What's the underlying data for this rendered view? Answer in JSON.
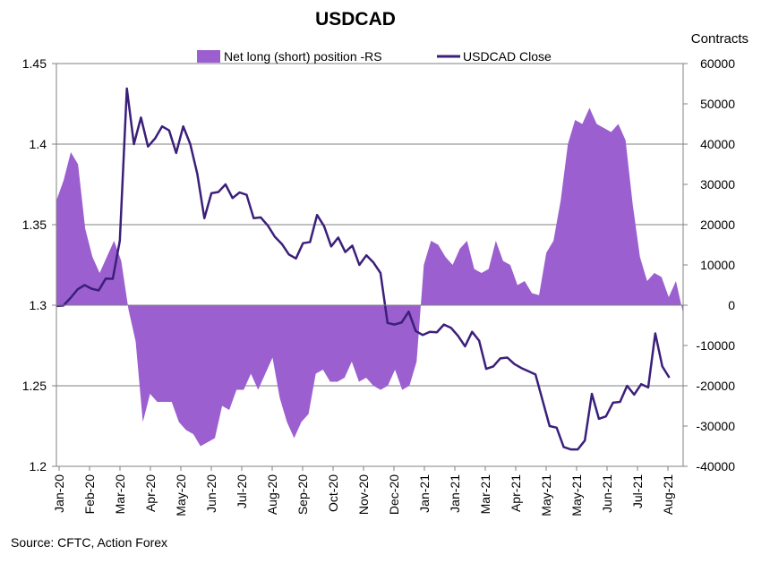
{
  "chart_data": {
    "type": "line+area",
    "title": "USDCAD",
    "right_axis_title": "Contracts",
    "source": "Source: CFTC, Action Forex",
    "legend": [
      {
        "name": "Net long (short) position -RS",
        "type": "area",
        "color": "#9b5fcf"
      },
      {
        "name": "USDCAD Close",
        "type": "line",
        "color": "#3b1f7a"
      }
    ],
    "x_ticks": [
      "Jan-20",
      "Feb-20",
      "Mar-20",
      "Apr-20",
      "May-20",
      "Jun-20",
      "Jul-20",
      "Aug-20",
      "Sep-20",
      "Oct-20",
      "Nov-20",
      "Dec-20",
      "Jan-21",
      "Jan-21",
      "Mar-21",
      "Apr-21",
      "May-21",
      "May-21",
      "Jun-21",
      "Jul-21",
      "Aug-21"
    ],
    "y_left": {
      "min": 1.2,
      "max": 1.45,
      "ticks": [
        "1.2",
        "1.25",
        "1.3",
        "1.35",
        "1.4",
        "1.45"
      ],
      "tick_values": [
        1.2,
        1.25,
        1.3,
        1.35,
        1.4,
        1.45
      ]
    },
    "y_right": {
      "min": -40000,
      "max": 60000,
      "ticks": [
        "-40000",
        "-30000",
        "-20000",
        "-10000",
        "0",
        "10000",
        "20000",
        "30000",
        "40000",
        "50000",
        "60000"
      ],
      "tick_values": [
        -40000,
        -30000,
        -20000,
        -10000,
        0,
        10000,
        20000,
        30000,
        40000,
        50000,
        60000
      ]
    },
    "weeks_span": [
      0,
      85
    ],
    "series": [
      {
        "name": "USDCAD Close",
        "axis": "left",
        "values": [
          1.2995,
          1.2998,
          1.3045,
          1.3098,
          1.3125,
          1.3102,
          1.3092,
          1.3165,
          1.3164,
          1.34,
          1.4345,
          1.4,
          1.4165,
          1.3985,
          1.4035,
          1.411,
          1.4085,
          1.3945,
          1.411,
          1.4,
          1.3815,
          1.354,
          1.3695,
          1.3703,
          1.375,
          1.3665,
          1.37,
          1.3685,
          1.354,
          1.3545,
          1.3495,
          1.3425,
          1.338,
          1.3315,
          1.329,
          1.3385,
          1.3392,
          1.356,
          1.349,
          1.3365,
          1.342,
          1.333,
          1.337,
          1.325,
          1.331,
          1.3265,
          1.32,
          1.289,
          1.288,
          1.2893,
          1.296,
          1.284,
          1.2815,
          1.2835,
          1.2832,
          1.288,
          1.286,
          1.281,
          1.2745,
          1.2835,
          1.278,
          1.2605,
          1.262,
          1.267,
          1.2675,
          1.2635,
          1.261,
          1.259,
          1.257,
          1.241,
          1.225,
          1.224,
          1.212,
          1.2105,
          1.2105,
          1.216,
          1.245,
          1.2295,
          1.231,
          1.2395,
          1.24,
          1.25,
          1.2445,
          1.251,
          1.249,
          1.2825,
          1.262,
          1.255
        ]
      },
      {
        "name": "Net long (short) position -RS",
        "axis": "right",
        "values": [
          26000,
          31000,
          38000,
          35000,
          19000,
          12000,
          8000,
          12000,
          16000,
          11000,
          -1000,
          -9000,
          -29000,
          -22000,
          -24000,
          -24000,
          -24000,
          -29000,
          -31000,
          -32000,
          -35000,
          -34000,
          -33000,
          -25000,
          -26000,
          -21000,
          -21000,
          -17000,
          -21000,
          -17000,
          -13000,
          -23000,
          -29000,
          -33000,
          -29000,
          -27000,
          -17000,
          -16000,
          -19000,
          -19000,
          -18000,
          -14000,
          -19000,
          -18000,
          -20000,
          -21000,
          -20000,
          -16000,
          -21000,
          -20000,
          -14000,
          10000,
          16000,
          15000,
          12000,
          10000,
          14000,
          16000,
          9000,
          8000,
          9000,
          16000,
          11000,
          10000,
          5000,
          6000,
          3000,
          2500,
          13000,
          16000,
          26000,
          40000,
          46000,
          45000,
          49000,
          45000,
          44000,
          43000,
          45000,
          41000,
          25000,
          12000,
          6000,
          8000,
          7000,
          2000,
          6000,
          -2000
        ]
      }
    ]
  }
}
